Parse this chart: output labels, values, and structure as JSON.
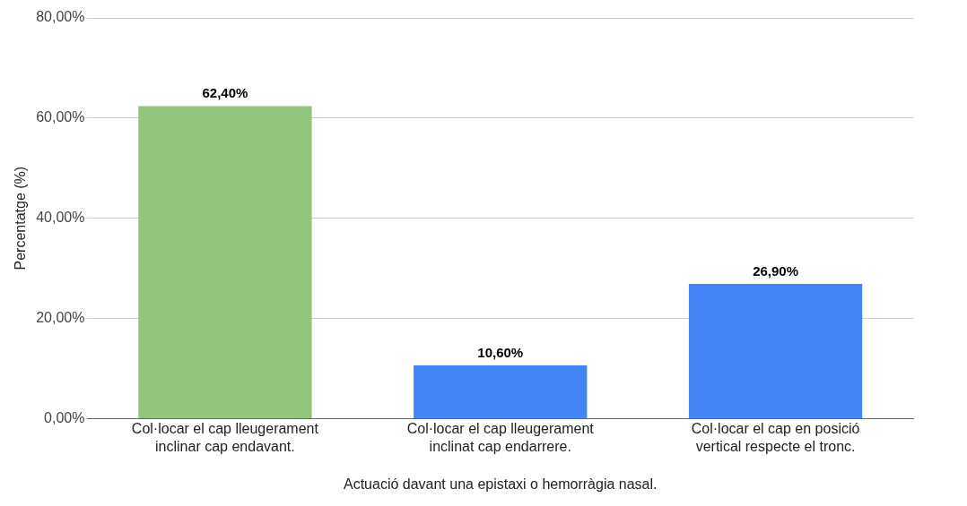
{
  "chart_data": {
    "type": "bar",
    "xlabel": "Actuació davant una epistaxi o hemorràgia nasal.",
    "ylabel": "Percentatge (%)",
    "categories": [
      "Col·locar el cap lleugerament inclinar cap endavant.",
      "Col·locar el cap lleugerament inclinat cap endarrere.",
      "Col·locar el cap en posició vertical respecte el tronc."
    ],
    "values": [
      62.4,
      10.6,
      26.9
    ],
    "colors": [
      "#93c47d",
      "#4285f4",
      "#4285f4"
    ],
    "value_labels": [
      "62,40%",
      "10,60%",
      "26,90%"
    ],
    "ylim": [
      0,
      80
    ],
    "yticks": [
      {
        "value": 0,
        "label": "0,00%"
      },
      {
        "value": 20,
        "label": "20,00%"
      },
      {
        "value": 40,
        "label": "40,00%"
      },
      {
        "value": 60,
        "label": "60,00%"
      },
      {
        "value": 80,
        "label": "80,00%"
      }
    ],
    "grid": "y",
    "legend": false
  }
}
